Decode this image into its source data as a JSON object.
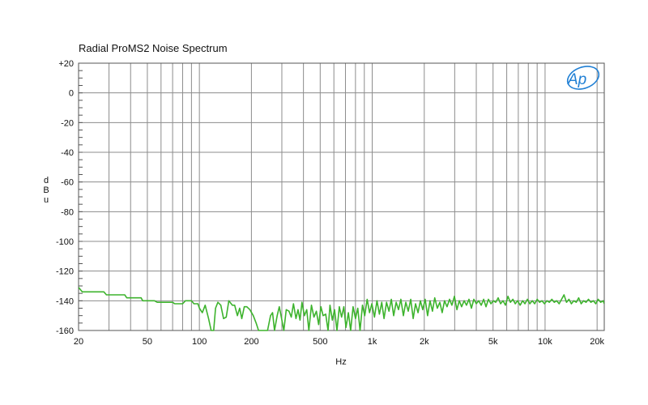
{
  "chart_data": {
    "type": "line",
    "title": "Radial ProMS2 Noise Spectrum",
    "xlabel": "Hz",
    "ylabel": "dBu",
    "xscale": "log",
    "xlim": [
      20,
      22000
    ],
    "ylim": [
      -160,
      20
    ],
    "x_ticks": [
      {
        "value": 20,
        "label": "20"
      },
      {
        "value": 50,
        "label": "50"
      },
      {
        "value": 100,
        "label": "100"
      },
      {
        "value": 200,
        "label": "200"
      },
      {
        "value": 500,
        "label": "500"
      },
      {
        "value": 1000,
        "label": "1k"
      },
      {
        "value": 2000,
        "label": "2k"
      },
      {
        "value": 5000,
        "label": "5k"
      },
      {
        "value": 10000,
        "label": "10k"
      },
      {
        "value": 20000,
        "label": "20k"
      }
    ],
    "y_ticks": [
      {
        "value": 20,
        "label": "+20"
      },
      {
        "value": 0,
        "label": "0"
      },
      {
        "value": -20,
        "label": "-20"
      },
      {
        "value": -40,
        "label": "-40"
      },
      {
        "value": -60,
        "label": "-60"
      },
      {
        "value": -80,
        "label": "-80"
      },
      {
        "value": -100,
        "label": "-100"
      },
      {
        "value": -120,
        "label": "-120"
      },
      {
        "value": -140,
        "label": "-140"
      },
      {
        "value": -160,
        "label": "-160"
      }
    ],
    "grid": true,
    "logo": "Ap",
    "colors": {
      "series": "#3db32d",
      "grid": "#8c8c8c",
      "frame": "#555555",
      "logo": "#1f7fd4"
    },
    "series": [
      {
        "points": [
          [
            20,
            -131
          ],
          [
            21,
            -134
          ],
          [
            28,
            -134
          ],
          [
            29,
            -136
          ],
          [
            37,
            -136
          ],
          [
            38,
            -138
          ],
          [
            46,
            -138
          ],
          [
            47,
            -140
          ],
          [
            55,
            -140
          ],
          [
            57,
            -141
          ],
          [
            70,
            -141
          ],
          [
            72,
            -142
          ],
          [
            80,
            -142
          ],
          [
            83,
            -140
          ],
          [
            90,
            -140
          ],
          [
            93,
            -142
          ],
          [
            98,
            -142
          ],
          [
            100,
            -145
          ],
          [
            104,
            -148
          ],
          [
            108,
            -143
          ],
          [
            113,
            -152
          ],
          [
            117,
            -160
          ],
          [
            121,
            -160
          ],
          [
            124,
            -145
          ],
          [
            128,
            -141
          ],
          [
            133,
            -143
          ],
          [
            138,
            -152
          ],
          [
            143,
            -151
          ],
          [
            148,
            -140
          ],
          [
            155,
            -143
          ],
          [
            160,
            -143
          ],
          [
            166,
            -150
          ],
          [
            171,
            -145
          ],
          [
            176,
            -152
          ],
          [
            182,
            -144
          ],
          [
            188,
            -144
          ],
          [
            196,
            -146
          ],
          [
            205,
            -150
          ],
          [
            213,
            -155
          ],
          [
            220,
            -160
          ],
          [
            235,
            -160
          ],
          [
            248,
            -160
          ],
          [
            258,
            -150
          ],
          [
            265,
            -148
          ],
          [
            272,
            -160
          ],
          [
            282,
            -150
          ],
          [
            290,
            -144
          ],
          [
            298,
            -151
          ],
          [
            308,
            -160
          ],
          [
            318,
            -146
          ],
          [
            330,
            -147
          ],
          [
            340,
            -151
          ],
          [
            350,
            -142
          ],
          [
            362,
            -152
          ],
          [
            372,
            -146
          ],
          [
            382,
            -153
          ],
          [
            392,
            -141
          ],
          [
            405,
            -150
          ],
          [
            418,
            -146
          ],
          [
            430,
            -160
          ],
          [
            445,
            -143
          ],
          [
            460,
            -151
          ],
          [
            475,
            -147
          ],
          [
            490,
            -156
          ],
          [
            505,
            -144
          ],
          [
            520,
            -150
          ],
          [
            538,
            -149
          ],
          [
            555,
            -160
          ],
          [
            570,
            -143
          ],
          [
            588,
            -153
          ],
          [
            605,
            -146
          ],
          [
            625,
            -160
          ],
          [
            645,
            -144
          ],
          [
            665,
            -151
          ],
          [
            685,
            -144
          ],
          [
            705,
            -158
          ],
          [
            728,
            -148
          ],
          [
            750,
            -160
          ],
          [
            775,
            -144
          ],
          [
            800,
            -152
          ],
          [
            825,
            -145
          ],
          [
            850,
            -160
          ],
          [
            878,
            -143
          ],
          [
            905,
            -150
          ],
          [
            935,
            -139
          ],
          [
            965,
            -148
          ],
          [
            995,
            -142
          ],
          [
            1030,
            -151
          ],
          [
            1065,
            -140
          ],
          [
            1100,
            -149
          ],
          [
            1135,
            -141
          ],
          [
            1170,
            -152
          ],
          [
            1210,
            -141
          ],
          [
            1250,
            -147
          ],
          [
            1290,
            -139
          ],
          [
            1330,
            -150
          ],
          [
            1375,
            -141
          ],
          [
            1420,
            -146
          ],
          [
            1465,
            -139
          ],
          [
            1515,
            -150
          ],
          [
            1565,
            -141
          ],
          [
            1615,
            -147
          ],
          [
            1670,
            -139
          ],
          [
            1725,
            -152
          ],
          [
            1780,
            -142
          ],
          [
            1840,
            -148
          ],
          [
            1900,
            -140
          ],
          [
            1960,
            -146
          ],
          [
            2025,
            -139
          ],
          [
            2090,
            -150
          ],
          [
            2160,
            -140
          ],
          [
            2230,
            -147
          ],
          [
            2300,
            -138
          ],
          [
            2380,
            -145
          ],
          [
            2460,
            -141
          ],
          [
            2540,
            -148
          ],
          [
            2620,
            -140
          ],
          [
            2710,
            -144
          ],
          [
            2800,
            -139
          ],
          [
            2890,
            -143
          ],
          [
            2990,
            -137
          ],
          [
            3090,
            -146
          ],
          [
            3190,
            -140
          ],
          [
            3290,
            -144
          ],
          [
            3400,
            -140
          ],
          [
            3510,
            -143
          ],
          [
            3630,
            -139
          ],
          [
            3750,
            -145
          ],
          [
            3870,
            -139
          ],
          [
            4000,
            -142
          ],
          [
            4130,
            -140
          ],
          [
            4270,
            -143
          ],
          [
            4410,
            -139
          ],
          [
            4550,
            -144
          ],
          [
            4700,
            -139
          ],
          [
            4860,
            -142
          ],
          [
            5020,
            -140
          ],
          [
            5180,
            -141
          ],
          [
            5350,
            -138
          ],
          [
            5530,
            -142
          ],
          [
            5710,
            -140
          ],
          [
            5900,
            -143
          ],
          [
            6100,
            -137
          ],
          [
            6300,
            -141
          ],
          [
            6510,
            -139
          ],
          [
            6720,
            -142
          ],
          [
            6940,
            -140
          ],
          [
            7170,
            -143
          ],
          [
            7410,
            -140
          ],
          [
            7650,
            -142
          ],
          [
            7900,
            -139
          ],
          [
            8160,
            -142
          ],
          [
            8430,
            -140
          ],
          [
            8710,
            -142
          ],
          [
            9000,
            -139
          ],
          [
            9300,
            -141
          ],
          [
            9600,
            -140
          ],
          [
            9920,
            -142
          ],
          [
            10250,
            -140
          ],
          [
            10590,
            -141
          ],
          [
            10940,
            -139
          ],
          [
            11300,
            -141
          ],
          [
            11670,
            -140
          ],
          [
            12060,
            -142
          ],
          [
            12460,
            -139
          ],
          [
            12870,
            -136
          ],
          [
            13300,
            -141
          ],
          [
            13740,
            -139
          ],
          [
            14190,
            -142
          ],
          [
            14660,
            -140
          ],
          [
            15150,
            -141
          ],
          [
            15650,
            -138
          ],
          [
            16170,
            -142
          ],
          [
            16700,
            -140
          ],
          [
            17250,
            -141
          ],
          [
            17820,
            -139
          ],
          [
            18410,
            -141
          ],
          [
            19020,
            -140
          ],
          [
            19650,
            -142
          ],
          [
            20300,
            -139
          ],
          [
            20970,
            -141
          ],
          [
            21660,
            -140
          ],
          [
            22000,
            -142
          ]
        ]
      }
    ]
  }
}
